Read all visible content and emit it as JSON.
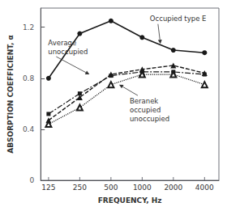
{
  "chart_data": {
    "type": "line",
    "xlabel": "FREQUENCY, Hz",
    "ylabel": "ABSORPTION COEFFICIENT, α",
    "x": [
      125,
      250,
      500,
      1000,
      2000,
      4000
    ],
    "series": [
      {
        "color": "#1a1a1a",
        "marker": "circle",
        "line_style": "solid",
        "values": [
          0.8,
          1.15,
          1.25,
          1.12,
          1.02,
          1.0
        ]
      },
      {
        "color": "#1a1a1a",
        "marker": "triangle",
        "line_style": "dashed",
        "values": [
          0.47,
          0.65,
          0.83,
          0.87,
          0.9,
          0.84
        ]
      },
      {
        "color": "#1a1a1a",
        "marker": "square",
        "line_style": "dashdot",
        "values": [
          0.52,
          0.68,
          0.82,
          0.85,
          0.85,
          0.83
        ]
      },
      {
        "color": "#1a1a1a",
        "marker": "open triangle",
        "line_style": "dotted",
        "values": [
          0.44,
          0.57,
          0.75,
          0.83,
          0.83,
          0.75
        ]
      }
    ],
    "log": "x",
    "xlim": [
      105,
      5500
    ],
    "xticks": [
      125,
      250,
      500,
      1000,
      2000,
      4000
    ],
    "ylim": [
      0,
      1.35
    ],
    "yticks": [
      0,
      0.4,
      0.8,
      1.2
    ],
    "grid": false,
    "annotations": [
      {
        "text": "Occupied type E",
        "x": 1500,
        "y": 1.07
      },
      {
        "text": "Average\nunoccupied",
        "x": 310,
        "y": 0.83
      },
      {
        "text": "Beranek\noccupied\nunoccupied",
        "x": 600,
        "y": 0.75
      }
    ]
  }
}
